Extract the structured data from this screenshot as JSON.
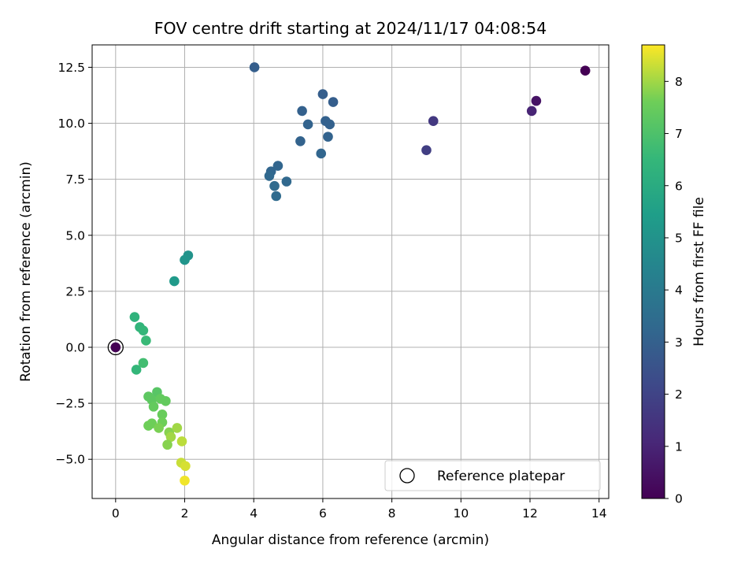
{
  "chart_data": {
    "type": "scatter",
    "title": "FOV centre drift starting at 2024/11/17 04:08:54",
    "xlabel": "Angular distance from reference (arcmin)",
    "ylabel": "Rotation from reference (arcmin)",
    "xlim": [
      -0.68,
      14.28
    ],
    "ylim": [
      -6.75,
      13.5
    ],
    "x_ticks": [
      0,
      2,
      4,
      6,
      8,
      10,
      12,
      14
    ],
    "x_tick_labels": [
      "0",
      "2",
      "4",
      "6",
      "8",
      "10",
      "12",
      "14"
    ],
    "y_ticks": [
      -5.0,
      -2.5,
      0.0,
      2.5,
      5.0,
      7.5,
      10.0,
      12.5
    ],
    "y_tick_labels": [
      "−5.0",
      "−2.5",
      "0.0",
      "2.5",
      "5.0",
      "7.5",
      "10.0",
      "12.5"
    ],
    "grid": true,
    "colorbar": {
      "label": "Hours from first FF file",
      "colormap": "viridis",
      "range": [
        0,
        8.7
      ],
      "ticks": [
        0,
        1,
        2,
        3,
        4,
        5,
        6,
        7,
        8
      ],
      "tick_labels": [
        "0",
        "1",
        "2",
        "3",
        "4",
        "5",
        "6",
        "7",
        "8"
      ]
    },
    "legend": {
      "placement": "lower-right",
      "entries": [
        "Reference platepar"
      ]
    },
    "reference_point": {
      "x": 0.0,
      "y": 0.0,
      "hours": 0.0
    },
    "points": [
      {
        "x": 13.6,
        "y": 12.35,
        "hours": 0.0
      },
      {
        "x": 12.18,
        "y": 11.0,
        "hours": 0.5
      },
      {
        "x": 12.05,
        "y": 10.55,
        "hours": 1.0
      },
      {
        "x": 9.2,
        "y": 10.1,
        "hours": 1.6
      },
      {
        "x": 9.0,
        "y": 8.8,
        "hours": 1.8
      },
      {
        "x": 4.02,
        "y": 12.5,
        "hours": 2.9
      },
      {
        "x": 6.0,
        "y": 11.3,
        "hours": 2.9
      },
      {
        "x": 6.3,
        "y": 10.95,
        "hours": 2.9
      },
      {
        "x": 5.4,
        "y": 10.55,
        "hours": 3.0
      },
      {
        "x": 6.08,
        "y": 10.1,
        "hours": 3.0
      },
      {
        "x": 6.2,
        "y": 9.95,
        "hours": 3.0
      },
      {
        "x": 5.57,
        "y": 9.95,
        "hours": 3.1
      },
      {
        "x": 6.15,
        "y": 9.4,
        "hours": 3.1
      },
      {
        "x": 5.35,
        "y": 9.2,
        "hours": 3.1
      },
      {
        "x": 5.95,
        "y": 8.65,
        "hours": 3.2
      },
      {
        "x": 4.7,
        "y": 8.1,
        "hours": 3.2
      },
      {
        "x": 4.5,
        "y": 7.85,
        "hours": 3.2
      },
      {
        "x": 4.45,
        "y": 7.65,
        "hours": 3.3
      },
      {
        "x": 4.95,
        "y": 7.4,
        "hours": 3.3
      },
      {
        "x": 4.6,
        "y": 7.2,
        "hours": 3.4
      },
      {
        "x": 4.65,
        "y": 6.75,
        "hours": 3.4
      },
      {
        "x": 2.1,
        "y": 4.1,
        "hours": 5.0
      },
      {
        "x": 2.0,
        "y": 3.9,
        "hours": 5.1
      },
      {
        "x": 1.7,
        "y": 2.95,
        "hours": 5.3
      },
      {
        "x": 0.55,
        "y": 1.35,
        "hours": 6.3
      },
      {
        "x": 0.7,
        "y": 0.9,
        "hours": 6.4
      },
      {
        "x": 0.8,
        "y": 0.75,
        "hours": 6.5
      },
      {
        "x": 0.88,
        "y": 0.3,
        "hours": 6.6
      },
      {
        "x": 0.6,
        "y": -1.0,
        "hours": 6.5
      },
      {
        "x": 0.8,
        "y": -0.7,
        "hours": 6.8
      },
      {
        "x": 0.95,
        "y": -2.2,
        "hours": 7.3
      },
      {
        "x": 1.2,
        "y": -2.0,
        "hours": 7.2
      },
      {
        "x": 1.05,
        "y": -2.35,
        "hours": 7.3
      },
      {
        "x": 1.3,
        "y": -2.3,
        "hours": 7.4
      },
      {
        "x": 1.45,
        "y": -2.4,
        "hours": 7.4
      },
      {
        "x": 1.1,
        "y": -2.65,
        "hours": 7.4
      },
      {
        "x": 1.35,
        "y": -3.0,
        "hours": 7.5
      },
      {
        "x": 1.05,
        "y": -3.4,
        "hours": 7.6
      },
      {
        "x": 0.95,
        "y": -3.5,
        "hours": 7.6
      },
      {
        "x": 1.35,
        "y": -3.35,
        "hours": 7.6
      },
      {
        "x": 1.25,
        "y": -3.6,
        "hours": 7.7
      },
      {
        "x": 1.55,
        "y": -3.8,
        "hours": 7.8
      },
      {
        "x": 1.6,
        "y": -4.0,
        "hours": 8.0
      },
      {
        "x": 1.5,
        "y": -4.35,
        "hours": 7.8
      },
      {
        "x": 1.78,
        "y": -3.6,
        "hours": 8.0
      },
      {
        "x": 1.92,
        "y": -4.2,
        "hours": 8.2
      },
      {
        "x": 1.9,
        "y": -5.15,
        "hours": 8.3
      },
      {
        "x": 2.02,
        "y": -5.3,
        "hours": 8.4
      },
      {
        "x": 2.0,
        "y": -5.95,
        "hours": 8.6
      }
    ]
  }
}
